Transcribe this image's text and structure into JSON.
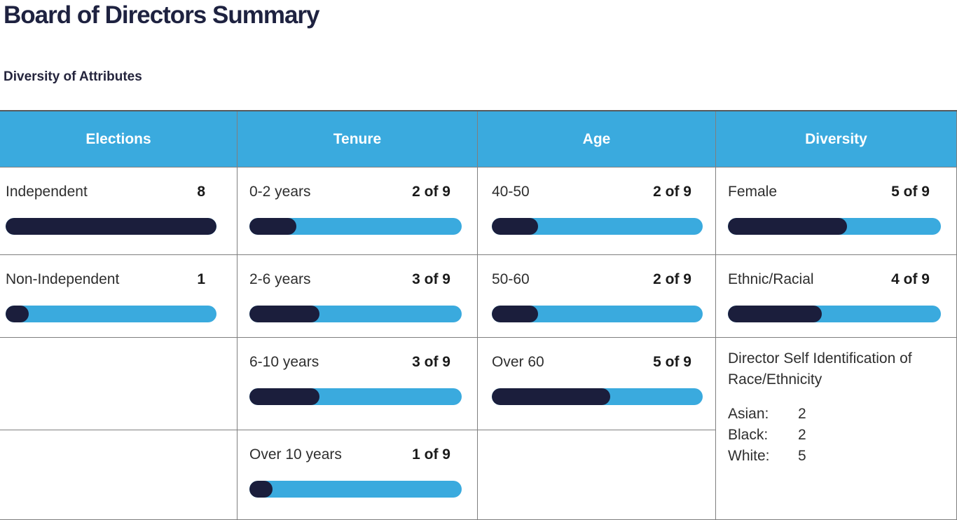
{
  "page": {
    "title": "Board of Directors Summary",
    "subtitle": "Diversity of Attributes"
  },
  "colors": {
    "accent_blue": "#3aaade",
    "dark_navy": "#1b1e3c",
    "title_navy": "#1e2240",
    "header_text": "#ffffff",
    "grid_line": "#7f7f7f"
  },
  "table": {
    "columns": [
      {
        "header": "Elections",
        "rows": [
          {
            "label": "Independent",
            "value": "8",
            "bar_percent": 100
          },
          {
            "label": "Non-Independent",
            "value": "1",
            "bar_percent": 11
          }
        ]
      },
      {
        "header": "Tenure",
        "rows": [
          {
            "label": "0-2 years",
            "value": "2 of 9",
            "bar_percent": 22
          },
          {
            "label": "2-6 years",
            "value": "3 of 9",
            "bar_percent": 33
          },
          {
            "label": "6-10 years",
            "value": "3 of 9",
            "bar_percent": 33
          },
          {
            "label": "Over 10 years",
            "value": "1 of 9",
            "bar_percent": 11
          }
        ]
      },
      {
        "header": "Age",
        "rows": [
          {
            "label": "40-50",
            "value": "2 of 9",
            "bar_percent": 22
          },
          {
            "label": "50-60",
            "value": "2 of 9",
            "bar_percent": 22
          },
          {
            "label": "Over 60",
            "value": "5 of 9",
            "bar_percent": 56
          }
        ]
      },
      {
        "header": "Diversity",
        "rows": [
          {
            "label": "Female",
            "value": "5 of 9",
            "bar_percent": 56
          },
          {
            "label": "Ethnic/Racial",
            "value": "4 of 9",
            "bar_percent": 44
          }
        ],
        "note": {
          "title": "Director Self Identification of Race/Ethnicity",
          "items": [
            {
              "label": "Asian:",
              "value": "2"
            },
            {
              "label": "Black:",
              "value": "2"
            },
            {
              "label": "White:",
              "value": "5"
            }
          ]
        }
      }
    ]
  },
  "chart_data": [
    {
      "type": "bar",
      "title": "Elections",
      "categories": [
        "Independent",
        "Non-Independent"
      ],
      "values": [
        8,
        1
      ],
      "total_board_size": 9
    },
    {
      "type": "bar",
      "title": "Tenure",
      "categories": [
        "0-2 years",
        "2-6 years",
        "6-10 years",
        "Over 10 years"
      ],
      "values": [
        2,
        3,
        3,
        1
      ],
      "total_board_size": 9
    },
    {
      "type": "bar",
      "title": "Age",
      "categories": [
        "40-50",
        "50-60",
        "Over 60"
      ],
      "values": [
        2,
        2,
        5
      ],
      "total_board_size": 9
    },
    {
      "type": "bar",
      "title": "Diversity",
      "categories": [
        "Female",
        "Ethnic/Racial"
      ],
      "values": [
        5,
        4
      ],
      "total_board_size": 9
    },
    {
      "type": "table",
      "title": "Director Self Identification of Race/Ethnicity",
      "categories": [
        "Asian",
        "Black",
        "White"
      ],
      "values": [
        2,
        2,
        5
      ]
    }
  ]
}
